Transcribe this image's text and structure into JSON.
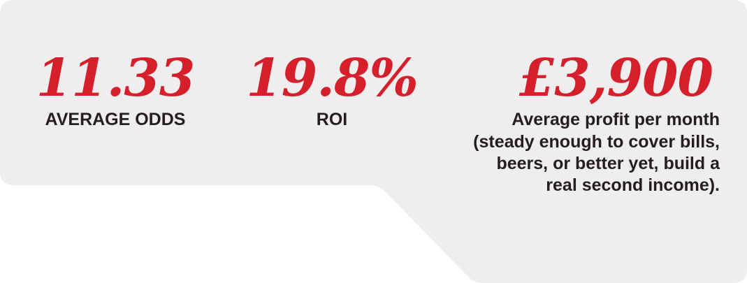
{
  "colors": {
    "panel_background": "#efedee",
    "accent_red": "#d51f2b",
    "text_dark": "#231f20"
  },
  "stats": {
    "odds": {
      "value": "11.33",
      "label": "AVERAGE ODDS"
    },
    "roi": {
      "value": "19.8%",
      "label": "ROI"
    },
    "profit": {
      "value": "£3,900",
      "label": "Average profit per month",
      "description": "(steady enough to cover bills, beers, or better yet, build a real second income)."
    }
  }
}
